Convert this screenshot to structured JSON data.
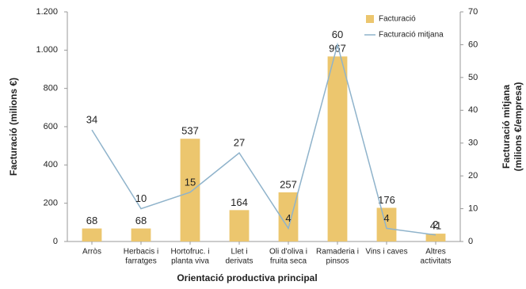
{
  "chart_data": {
    "type": "bar_line",
    "xlabel": "Orientació productiva principal",
    "ylabel": "Facturació (milions €)",
    "y2label": [
      "Facturació mitjana",
      "(milions €/empresa)"
    ],
    "categories": [
      [
        "Arròs"
      ],
      [
        "Herbacis i",
        "farratges"
      ],
      [
        "Hortofruc. i",
        "planta viva"
      ],
      [
        "Llet i",
        "derivats"
      ],
      [
        "Oli d'oliva i",
        "fruita seca"
      ],
      [
        "Ramaderia i",
        "pinsos"
      ],
      [
        "Vins i caves"
      ],
      [
        "Altres",
        "activitats"
      ]
    ],
    "series": [
      {
        "name": "Facturació",
        "type": "bar",
        "color": "#ecc66e",
        "values": [
          68,
          68,
          537,
          164,
          257,
          967,
          176,
          41
        ]
      },
      {
        "name": "Facturació mitjana",
        "type": "line",
        "axis": "y2",
        "color": "#8fb3cb",
        "values": [
          34,
          10,
          15,
          27,
          4,
          60,
          4,
          2
        ]
      }
    ],
    "ylim": [
      0,
      1200
    ],
    "yticks": [
      0,
      200,
      400,
      600,
      800,
      {
        "value": 1000,
        "label": "1.000"
      },
      {
        "value": 1200,
        "label": "1.200"
      }
    ],
    "y2lim": [
      0,
      70
    ],
    "y2ticks": [
      0,
      10,
      20,
      30,
      40,
      50,
      60,
      70
    ],
    "legend": "upper right"
  }
}
